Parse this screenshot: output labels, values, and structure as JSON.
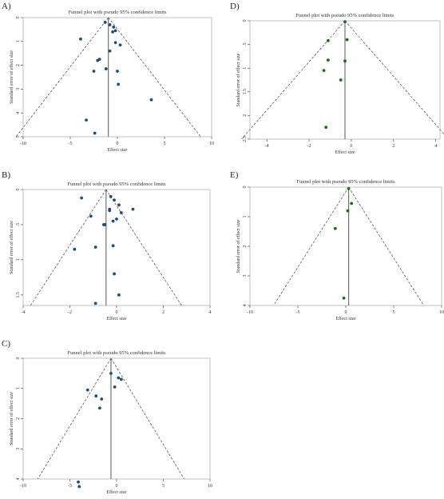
{
  "chart_data": [
    {
      "panel": "A)",
      "type": "scatter",
      "title": "Funnel plot with pseudo 95% confidence limits",
      "xlabel": "Effect size",
      "ylabel": "Standard error of effect size",
      "xlim": [
        -10,
        10
      ],
      "ylim": [
        5,
        0
      ],
      "y_reversed": true,
      "xticks": [
        -10,
        -5,
        0,
        5,
        10
      ],
      "yticks": [
        0,
        1,
        2,
        3,
        4,
        5
      ],
      "pooled": -0.96,
      "funnel": {
        "apex_x": -0.96,
        "slope": 1.96
      },
      "point_color": "#1f4e79",
      "points": [
        [
          -1.3,
          0.2
        ],
        [
          -0.8,
          0.3
        ],
        [
          -0.4,
          0.4
        ],
        [
          -0.2,
          0.55
        ],
        [
          -0.5,
          0.6
        ],
        [
          -3.9,
          0.9
        ],
        [
          -0.2,
          1.05
        ],
        [
          0.3,
          1.15
        ],
        [
          -0.8,
          1.4
        ],
        [
          -1.9,
          1.75
        ],
        [
          -2.1,
          1.8
        ],
        [
          -1.2,
          2.15
        ],
        [
          -2.5,
          2.25
        ],
        [
          0.0,
          2.25
        ],
        [
          0.1,
          2.8
        ],
        [
          3.6,
          3.45
        ],
        [
          -3.3,
          4.3
        ],
        [
          -2.4,
          4.85
        ]
      ]
    },
    {
      "panel": "B)",
      "type": "scatter",
      "title": "Funnel plot with pseudo 95% confidence limits",
      "xlabel": "Effect size",
      "ylabel": "Standard error of effect size",
      "xlim": [
        -4,
        4
      ],
      "ylim": [
        1.65,
        0
      ],
      "y_reversed": true,
      "xticks": [
        -4,
        -2,
        0,
        2,
        4
      ],
      "yticks": [
        0,
        0.5,
        1,
        1.5
      ],
      "ytick_labels": [
        "0",
        ".5",
        "1",
        "1.5"
      ],
      "pooled": -0.45,
      "funnel": {
        "apex_x": -0.45,
        "slope": 1.96
      },
      "point_color": "#1f4e79",
      "points": [
        [
          -1.5,
          0.12
        ],
        [
          -0.25,
          0.1
        ],
        [
          -0.1,
          0.15
        ],
        [
          0.1,
          0.22
        ],
        [
          -0.3,
          0.28
        ],
        [
          -0.3,
          0.3
        ],
        [
          0.7,
          0.28
        ],
        [
          0.2,
          0.33
        ],
        [
          -1.1,
          0.38
        ],
        [
          0.0,
          0.42
        ],
        [
          -0.15,
          0.45
        ],
        [
          -0.55,
          0.5
        ],
        [
          -0.5,
          0.5
        ],
        [
          -1.8,
          0.85
        ],
        [
          -0.9,
          0.82
        ],
        [
          -0.15,
          0.8
        ],
        [
          -0.1,
          1.2
        ],
        [
          0.1,
          1.5
        ],
        [
          -0.9,
          1.62
        ]
      ]
    },
    {
      "panel": "C)",
      "type": "scatter",
      "title": "Funnel plot with pseudo 95% confidence limits",
      "xlabel": "Effect size",
      "ylabel": "Standard error of effect size",
      "xlim": [
        -10,
        10
      ],
      "ylim": [
        4,
        0
      ],
      "y_reversed": true,
      "xticks": [
        -10,
        -5,
        0,
        5,
        10
      ],
      "yticks": [
        0,
        1,
        2,
        3,
        4
      ],
      "pooled": -0.6,
      "funnel": {
        "apex_x": -0.6,
        "slope": 1.96
      },
      "point_color": "#1f4e79",
      "points": [
        [
          -0.6,
          0.5
        ],
        [
          0.2,
          0.65
        ],
        [
          0.5,
          0.7
        ],
        [
          -0.2,
          0.95
        ],
        [
          -3.1,
          1.05
        ],
        [
          -2.2,
          1.25
        ],
        [
          -1.6,
          1.35
        ],
        [
          -1.8,
          1.65
        ],
        [
          -4.1,
          4.1
        ],
        [
          -4.0,
          4.25
        ]
      ]
    },
    {
      "panel": "D)",
      "type": "scatter",
      "title": "Funnel plot with pseudo 95% confidence limits",
      "xlabel": "Effect size",
      "ylabel": "Standard error of effect size",
      "xlim": [
        -4.8,
        4.2
      ],
      "ylim": [
        2.5,
        0
      ],
      "y_reversed": true,
      "xticks": [
        -4,
        -2,
        0,
        2,
        4
      ],
      "yticks": [
        0,
        0.5,
        1,
        1.5,
        2,
        2.5
      ],
      "ytick_labels": [
        "0",
        ".5",
        "1",
        "1.5",
        "2",
        "2.5"
      ],
      "pooled": -0.3,
      "funnel": {
        "apex_x": -0.3,
        "slope": 1.96
      },
      "point_color": "#1a6b1a",
      "points": [
        [
          -0.3,
          0.02
        ],
        [
          -0.2,
          0.4
        ],
        [
          -1.1,
          0.42
        ],
        [
          -1.1,
          0.83
        ],
        [
          -0.3,
          0.85
        ],
        [
          -1.3,
          1.05
        ],
        [
          -0.5,
          1.25
        ],
        [
          -1.2,
          2.25
        ]
      ]
    },
    {
      "panel": "E)",
      "type": "scatter",
      "title": "Funnel plot with pseudo 95% confidence limits",
      "xlabel": "Effect size",
      "ylabel": "Standard error of effect size",
      "xlim": [
        -10,
        10
      ],
      "ylim": [
        4,
        0
      ],
      "y_reversed": true,
      "xticks": [
        -10,
        -5,
        0,
        5,
        10
      ],
      "yticks": [
        0,
        1,
        2,
        3,
        4
      ],
      "pooled": 0.3,
      "funnel": {
        "apex_x": 0.3,
        "slope": 1.96
      },
      "point_color": "#1a6b1a",
      "points": [
        [
          0.3,
          0.05
        ],
        [
          0.6,
          0.55
        ],
        [
          0.2,
          0.8
        ],
        [
          -1.1,
          1.4
        ],
        [
          -0.2,
          3.75
        ]
      ]
    }
  ]
}
